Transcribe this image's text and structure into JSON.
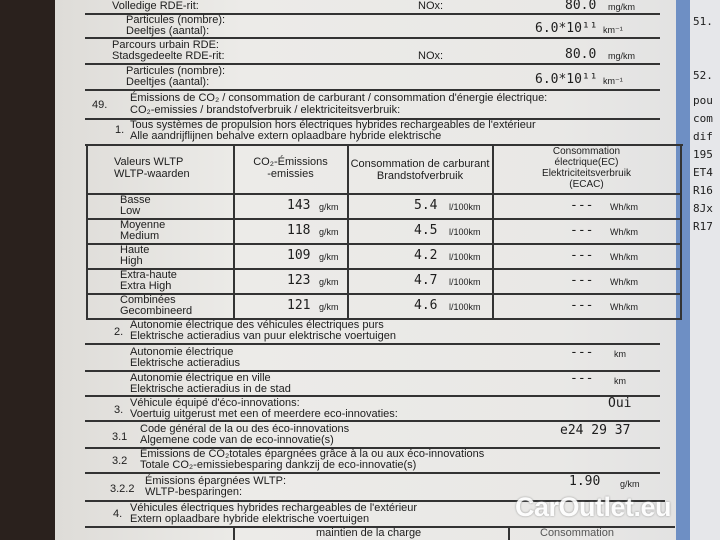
{
  "top": {
    "rde_full_label": "Volledige RDE-rit:",
    "nox1": "NOx:",
    "nox1_val": "80.0",
    "nox1_unit": "mg/km",
    "part1_fr": "Particules (nombre):",
    "part1_nl": "Deeltjes (aantal):",
    "part1_val": "6.0*10¹¹",
    "part1_unit": "km⁻¹",
    "urban_fr": "Parcours urbain RDE:",
    "urban_nl": "Stadsgedeelte RDE-rit:",
    "nox2": "NOx:",
    "nox2_val": "80.0",
    "nox2_unit": "mg/km",
    "part2_fr": "Particules (nombre):",
    "part2_nl": "Deeltjes (aantal):",
    "part2_val": "6.0*10¹¹",
    "part2_unit": "km⁻¹"
  },
  "s49": {
    "num": "49.",
    "fr": "Émissions de CO₂ / consommation de carburant / consommation d'énergie électrique:",
    "nl": "CO₂-emissies / brandstofverbruik / elektriciteitsverbruik:"
  },
  "s1": {
    "num": "1.",
    "fr": "Tous systèmes de propulsion hors électriques hybrides rechargeables de l'extérieur",
    "nl": "Alle aandrijflijnen behalve extern oplaadbare hybride elektrische"
  },
  "table": {
    "headers": [
      [
        "Valeurs WLTP",
        "WLTP-waarden"
      ],
      [
        "CO₂-Émissions",
        "-emissies"
      ],
      [
        "Consommation de carburant",
        "Brandstofverbruik"
      ],
      [
        "Consommation",
        "électrique(EC)",
        "Elektriciteitsverbruik",
        "(ECAC)"
      ]
    ],
    "rows": [
      {
        "fr": "Basse",
        "nl": "Low",
        "co2": "143",
        "co2_unit": "g/km",
        "fuel": "5.4",
        "fuel_unit": "l/100km",
        "ec": "---",
        "ec_unit": "Wh/km"
      },
      {
        "fr": "Moyenne",
        "nl": "Medium",
        "co2": "118",
        "co2_unit": "g/km",
        "fuel": "4.5",
        "fuel_unit": "l/100km",
        "ec": "---",
        "ec_unit": "Wh/km"
      },
      {
        "fr": "Haute",
        "nl": "High",
        "co2": "109",
        "co2_unit": "g/km",
        "fuel": "4.2",
        "fuel_unit": "l/100km",
        "ec": "---",
        "ec_unit": "Wh/km"
      },
      {
        "fr": "Extra-haute",
        "nl": "Extra High",
        "co2": "123",
        "co2_unit": "g/km",
        "fuel": "4.7",
        "fuel_unit": "l/100km",
        "ec": "---",
        "ec_unit": "Wh/km"
      },
      {
        "fr": "Combinées",
        "nl": "Gecombineerd",
        "co2": "121",
        "co2_unit": "g/km",
        "fuel": "4.6",
        "fuel_unit": "l/100km",
        "ec": "---",
        "ec_unit": "Wh/km"
      }
    ]
  },
  "s2": {
    "num": "2.",
    "fr": "Autonomie électrique des véhicules électriques purs",
    "nl": "Elektrische actieradius van puur elektrische voertuigen",
    "range_fr": "Autonomie électrique",
    "range_nl": "Elektrische actieradius",
    "range_val": "---",
    "range_unit": "km",
    "city_fr": "Autonomie électrique en ville",
    "city_nl": "Elektrische actieradius in de stad",
    "city_val": "---",
    "city_unit": "km"
  },
  "s3": {
    "num": "3.",
    "fr": "Véhicule équipé d'éco-innovations:",
    "nl": "Voertuig uitgerust met een of meerdere eco-innovaties:",
    "val": "Oui"
  },
  "s31": {
    "num": "3.1",
    "fr": "Code général de la ou des éco-innovations",
    "nl": "Algemene code van de eco-innovatie(s)",
    "val": "e24 29 37"
  },
  "s32": {
    "num": "3.2",
    "fr": "Émissions de CO₂totales épargnées grâce à la ou aux éco-innovations",
    "nl": "Totale CO₂-emissiebesparing dankzij de eco-innovatie(s)"
  },
  "s322": {
    "num": "3.2.2",
    "fr": "Émissions épargnées WLTP:",
    "nl": "WLTP-besparingen:",
    "val": "1.90",
    "unit": "g/km"
  },
  "s4": {
    "num": "4.",
    "fr": "Véhicules électriques hybrides rechargeables de l'extérieur",
    "nl": "Extern oplaadbare hybride elektrische voertuigen",
    "col1": "maintien de la charge",
    "col2": "Consommation"
  },
  "right_page": [
    "51.",
    "52.",
    "pou",
    "com",
    "dif",
    "195",
    "ET4",
    "R16",
    "8Jx",
    "R17"
  ],
  "watermark": "CarOutlet.eu"
}
